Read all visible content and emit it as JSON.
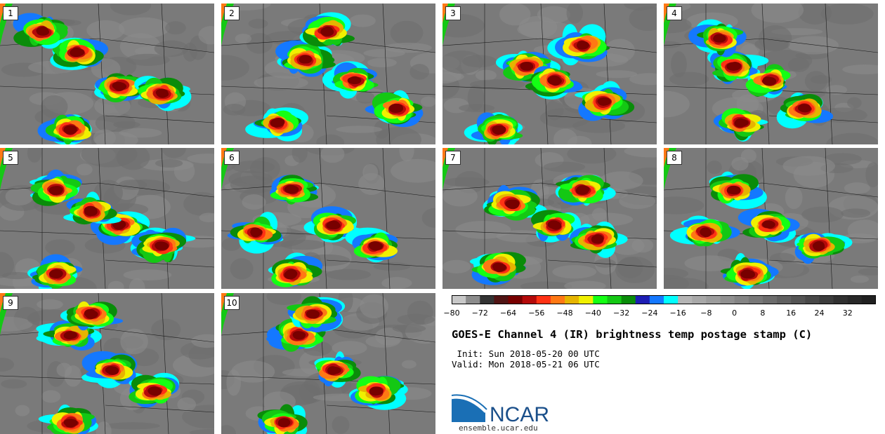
{
  "panels": [
    {
      "label": "1"
    },
    {
      "label": "2"
    },
    {
      "label": "3"
    },
    {
      "label": "4"
    },
    {
      "label": "5"
    },
    {
      "label": "6"
    },
    {
      "label": "7"
    },
    {
      "label": "8"
    },
    {
      "label": "9"
    },
    {
      "label": "10"
    }
  ],
  "colorbar": {
    "min": -80,
    "max": 40,
    "step": 4,
    "tick_labels": [
      "−80",
      "−72",
      "−64",
      "−56",
      "−48",
      "−40",
      "−32",
      "−24",
      "−16",
      "−8",
      "0",
      "8",
      "16",
      "24",
      "32"
    ],
    "colors": [
      "#c8c8c8",
      "#8c8c8c",
      "#333333",
      "#501414",
      "#780000",
      "#b40a0a",
      "#ff3214",
      "#ff7814",
      "#e6b400",
      "#f0f000",
      "#14ff14",
      "#14c814",
      "#0a8c0a",
      "#1e1eb4",
      "#1478ff",
      "#00ffff",
      "#b4b4b4",
      "#a8a8a8",
      "#9c9c9c",
      "#909090",
      "#848484",
      "#787878",
      "#6c6c6c",
      "#606060",
      "#545454",
      "#484848",
      "#3c3c3c",
      "#303030",
      "#282828",
      "#202020"
    ]
  },
  "title": "GOES-E Channel 4 (IR) brightness temp postage stamp (C)",
  "init_line": " Init: Sun 2018-05-20 00 UTC",
  "valid_line": "Valid: Mon 2018-05-21 06 UTC",
  "logo_text": "NCAR",
  "site": "ensemble.ucar.edu"
}
